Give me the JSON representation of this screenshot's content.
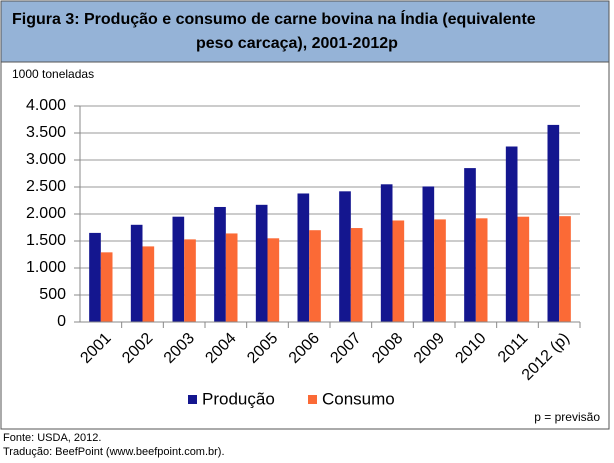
{
  "chart_data": {
    "type": "bar",
    "title": "Figura 3: Produção e consumo de carne bovina na Índia (equivalente peso carcaça), 2001-2012p",
    "title_lines": [
      "Figura 3: Produção e consumo de carne bovina na Índia (equivalente",
      "peso carcaça), 2001-2012p"
    ],
    "y_label": "1000 toneladas",
    "categories": [
      "2001",
      "2002",
      "2003",
      "2004",
      "2005",
      "2006",
      "2007",
      "2008",
      "2009",
      "2010",
      "2011",
      "2012 (p)"
    ],
    "series": [
      {
        "name": "Produção",
        "color": "#14168f",
        "values": [
          1650,
          1800,
          1950,
          2130,
          2170,
          2380,
          2420,
          2550,
          2510,
          2850,
          3250,
          3650
        ]
      },
      {
        "name": "Consumo",
        "color": "#fb6a36",
        "values": [
          1290,
          1400,
          1530,
          1640,
          1550,
          1700,
          1740,
          1880,
          1900,
          1920,
          1950,
          1960
        ]
      }
    ],
    "ylim": [
      0,
      4000
    ],
    "yticks": [
      0,
      {
        "value": 500,
        "label": "500"
      },
      {
        "value": 1000,
        "label": "1.000"
      },
      {
        "value": 1500,
        "label": "1.500"
      },
      {
        "value": 2000,
        "label": "2.000"
      },
      {
        "value": 2500,
        "label": "2.500"
      },
      {
        "value": 3000,
        "label": "3.000"
      },
      {
        "value": 3500,
        "label": "3.500"
      },
      {
        "value": 4000,
        "label": "4.000"
      }
    ],
    "grid": true,
    "note": "p = previsão",
    "source": [
      "Fonte: USDA, 2012.",
      "Tradução: BeefPoint (www.beefpoint.com.br)."
    ]
  }
}
